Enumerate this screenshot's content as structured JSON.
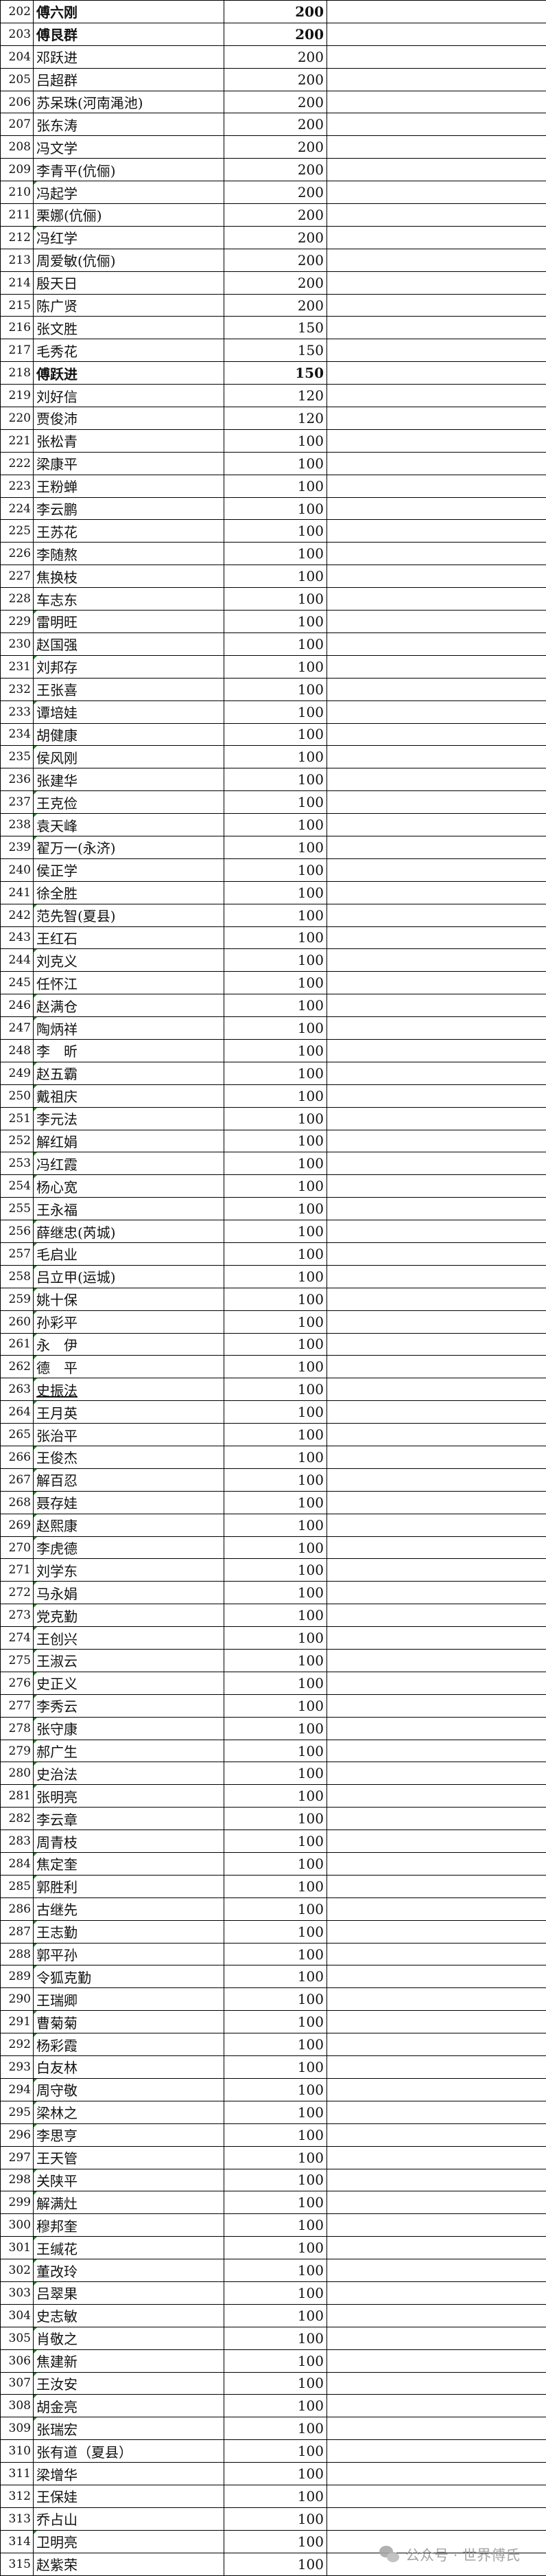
{
  "rows": [
    [
      "202",
      "傅六刚",
      "200",
      true
    ],
    [
      "203",
      "傅艮群",
      "200",
      true
    ],
    [
      "204",
      "邓跃进",
      "200"
    ],
    [
      "205",
      "吕超群",
      "200"
    ],
    [
      "206",
      "苏呆珠(河南渑池)",
      "200"
    ],
    [
      "207",
      "张东涛",
      "200"
    ],
    [
      "208",
      "冯文学",
      "200"
    ],
    [
      "209",
      "李青平(伉俪)",
      "200"
    ],
    [
      "210",
      "冯起学",
      "200"
    ],
    [
      "211",
      "栗娜(伉俪)",
      "200"
    ],
    [
      "212",
      "冯红学",
      "200"
    ],
    [
      "213",
      "周爱敏(伉俪)",
      "200"
    ],
    [
      "214",
      "殷天日",
      "200"
    ],
    [
      "215",
      "陈广贤",
      "200"
    ],
    [
      "216",
      "张文胜",
      "150"
    ],
    [
      "217",
      "毛秀花",
      "150"
    ],
    [
      "218",
      "傅跃进",
      "150",
      true
    ],
    [
      "219",
      "刘好信",
      "120"
    ],
    [
      "220",
      "贾俊沛",
      "120"
    ],
    [
      "221",
      "张松青",
      "100"
    ],
    [
      "222",
      "梁康平",
      "100"
    ],
    [
      "223",
      "王粉蝉",
      "100"
    ],
    [
      "224",
      "李云鹏",
      "100"
    ],
    [
      "225",
      "王苏花",
      "100"
    ],
    [
      "226",
      "李随熬",
      "100"
    ],
    [
      "227",
      "焦换枝",
      "100"
    ],
    [
      "228",
      "车志东",
      "100"
    ],
    [
      "229",
      "雷明旺",
      "100"
    ],
    [
      "230",
      "赵国强",
      "100"
    ],
    [
      "231",
      "刘邦存",
      "100"
    ],
    [
      "232",
      "王张喜",
      "100"
    ],
    [
      "233",
      "谭培娃",
      "100"
    ],
    [
      "234",
      "胡健康",
      "100"
    ],
    [
      "235",
      "侯风刚",
      "100"
    ],
    [
      "236",
      "张建华",
      "100"
    ],
    [
      "237",
      "王克俭",
      "100"
    ],
    [
      "238",
      "袁天峰",
      "100"
    ],
    [
      "239",
      "翟万一(永济)",
      "100"
    ],
    [
      "240",
      "侯正学",
      "100"
    ],
    [
      "241",
      "徐全胜",
      "100"
    ],
    [
      "242",
      "范先智(夏县)",
      "100"
    ],
    [
      "243",
      "王红石",
      "100"
    ],
    [
      "244",
      "刘克义",
      "100"
    ],
    [
      "245",
      "任怀江",
      "100"
    ],
    [
      "246",
      "赵满仓",
      "100"
    ],
    [
      "247",
      "陶炳祥",
      "100"
    ],
    [
      "248",
      "李　昕",
      "100"
    ],
    [
      "249",
      "赵五霸",
      "100"
    ],
    [
      "250",
      "戴祖庆",
      "100"
    ],
    [
      "251",
      "李元法",
      "100"
    ],
    [
      "252",
      "解红娟",
      "100"
    ],
    [
      "253",
      "冯红霞",
      "100"
    ],
    [
      "254",
      "杨心宽",
      "100"
    ],
    [
      "255",
      "王永福",
      "100"
    ],
    [
      "256",
      "薛继忠(芮城)",
      "100"
    ],
    [
      "257",
      "毛启业",
      "100"
    ],
    [
      "258",
      "吕立甲(运城)",
      "100"
    ],
    [
      "259",
      "姚十保",
      "100"
    ],
    [
      "260",
      "孙彩平",
      "100"
    ],
    [
      "261",
      "永　伊",
      "100"
    ],
    [
      "262",
      "德　平",
      "100"
    ],
    [
      "263",
      "史振法",
      "100"
    ],
    [
      "264",
      "王月英",
      "100"
    ],
    [
      "265",
      "张治平",
      "100"
    ],
    [
      "266",
      "王俊杰",
      "100"
    ],
    [
      "267",
      "解百忍",
      "100"
    ],
    [
      "268",
      "聂存娃",
      "100"
    ],
    [
      "269",
      "赵熙康",
      "100"
    ],
    [
      "270",
      "李虎德",
      "100"
    ],
    [
      "271",
      "刘学东",
      "100"
    ],
    [
      "272",
      "马永娟",
      "100"
    ],
    [
      "273",
      "党克勤",
      "100"
    ],
    [
      "274",
      "王创兴",
      "100"
    ],
    [
      "275",
      "王淑云",
      "100"
    ],
    [
      "276",
      "史正义",
      "100"
    ],
    [
      "277",
      "李秀云",
      "100"
    ],
    [
      "278",
      "张守康",
      "100"
    ],
    [
      "279",
      "郝广生",
      "100"
    ],
    [
      "280",
      "史治法",
      "100"
    ],
    [
      "281",
      "张明亮",
      "100"
    ],
    [
      "282",
      "李云章",
      "100"
    ],
    [
      "283",
      "周青枝",
      "100"
    ],
    [
      "284",
      "焦定奎",
      "100"
    ],
    [
      "285",
      "郭胜利",
      "100"
    ],
    [
      "286",
      "古继先",
      "100"
    ],
    [
      "287",
      "王志勤",
      "100"
    ],
    [
      "288",
      "郭平孙",
      "100"
    ],
    [
      "289",
      "令狐克勤",
      "100"
    ],
    [
      "290",
      "王瑞卿",
      "100"
    ],
    [
      "291",
      "曹菊菊",
      "100"
    ],
    [
      "292",
      "杨彩霞",
      "100"
    ],
    [
      "293",
      "白友林",
      "100"
    ],
    [
      "294",
      " 周守敬",
      "100"
    ],
    [
      "295",
      "梁林之",
      "100"
    ],
    [
      "296",
      "李思亨",
      "100"
    ],
    [
      "297",
      "王天管",
      "100"
    ],
    [
      "298",
      "关陕平",
      "100"
    ],
    [
      "299",
      "解满灶",
      "100"
    ],
    [
      "300",
      "穆邦奎",
      "100"
    ],
    [
      "301",
      "王缄花",
      "100"
    ],
    [
      "302",
      "董改玲",
      "100"
    ],
    [
      "303",
      "吕翠果",
      "100"
    ],
    [
      "304",
      "史志敏",
      "100"
    ],
    [
      "305",
      "肖敬之",
      "100"
    ],
    [
      "306",
      "焦建新",
      "100"
    ],
    [
      "307",
      "王汝安",
      "100"
    ],
    [
      "308",
      "胡金亮",
      "100"
    ],
    [
      "309",
      "张瑞宏",
      "100"
    ],
    [
      "310",
      "张有道（夏县）",
      "100"
    ],
    [
      "311",
      "梁增华",
      "100"
    ],
    [
      "312",
      "王保娃",
      "100"
    ],
    [
      "313",
      "乔占山",
      "100"
    ],
    [
      "314",
      "卫明亮",
      "100"
    ],
    [
      "315",
      "赵紫荣",
      "100"
    ]
  ],
  "underlined_rows": [
    "263"
  ],
  "flagged_rows": [
    "210",
    "212",
    "229",
    "231",
    "233",
    "235",
    "237",
    "238",
    "239",
    "242",
    "244",
    "246",
    "247",
    "249",
    "250",
    "251",
    "253",
    "254",
    "256",
    "257",
    "258",
    "259",
    "260",
    "261",
    "262",
    "263",
    "264",
    "266",
    "267",
    "268",
    "269",
    "270",
    "272",
    "273",
    "274",
    "275",
    "276",
    "277",
    "278",
    "279",
    "280",
    "281",
    "284",
    "285",
    "287",
    "288",
    "289",
    "291",
    "292",
    "294",
    "295",
    "296",
    "298",
    "299",
    "301",
    "302",
    "303",
    "305",
    "306",
    "307",
    "308",
    "309",
    "314"
  ],
  "watermark": {
    "text": "公众号 · 世界傅氏",
    "icon": "wechat-icon"
  },
  "colors": {
    "grid": "#000000",
    "comment_flag": "#1a8a1a",
    "watermark": "#9a9a9a"
  }
}
